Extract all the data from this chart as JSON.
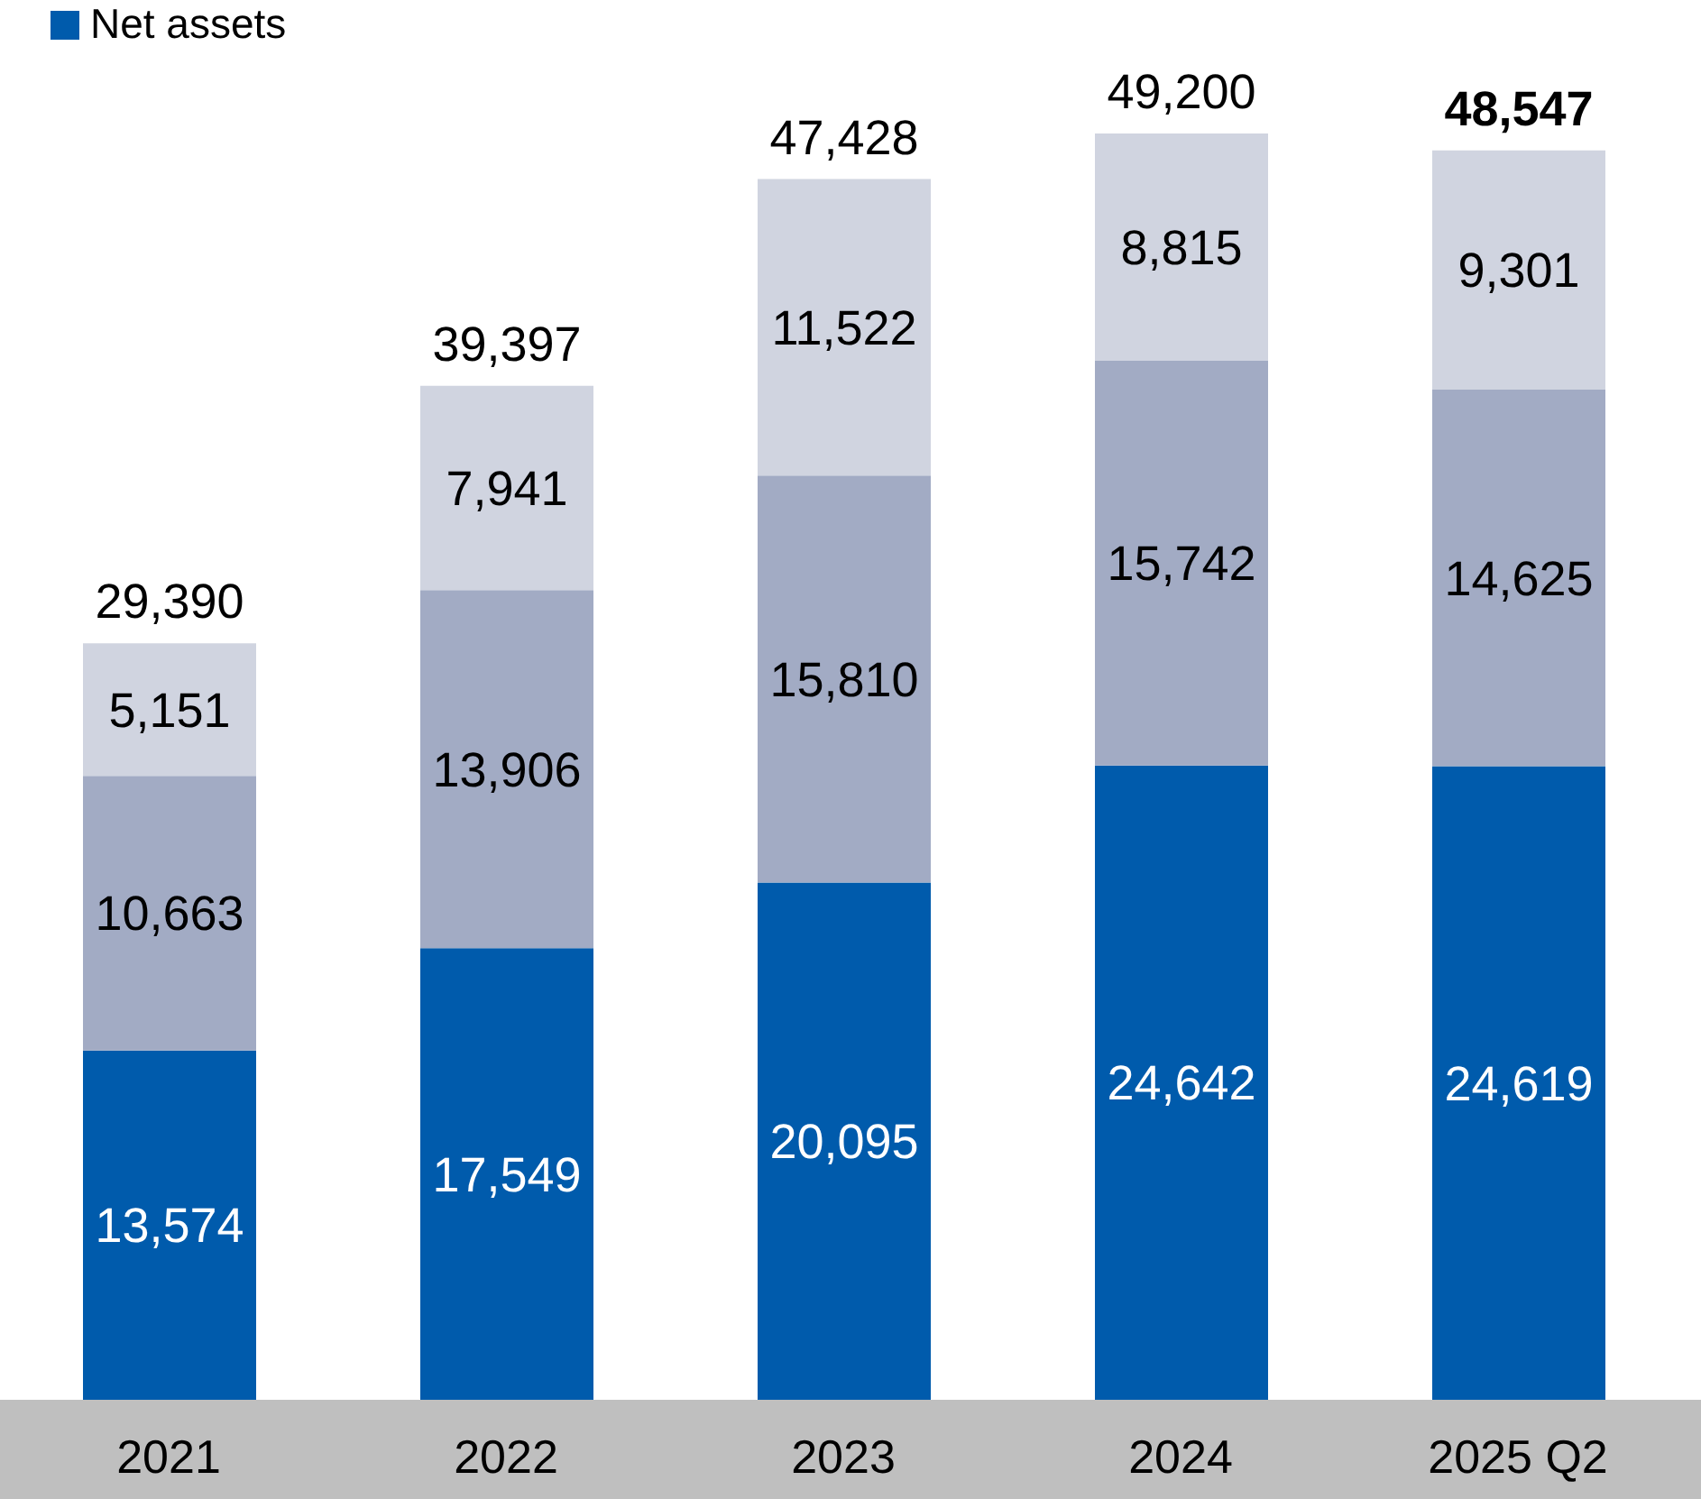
{
  "chart_data": {
    "type": "bar",
    "stacked": true,
    "categories": [
      "2021",
      "2022",
      "2023",
      "2024",
      "2025 Q2"
    ],
    "series": [
      {
        "name": "Net assets",
        "color": "#005bac",
        "values": [
          13574,
          17549,
          20095,
          24642,
          24619
        ],
        "value_labels": [
          "13,574",
          "17,549",
          "20,095",
          "24,642",
          "24,619"
        ]
      },
      {
        "color": "#a2abc4",
        "values": [
          10663,
          13906,
          15810,
          15742,
          14625
        ],
        "value_labels": [
          "10,663",
          "13,906",
          "15,810",
          "15,742",
          "14,625"
        ]
      },
      {
        "color": "#d0d4e0",
        "values": [
          5151,
          7941,
          11522,
          8815,
          9301
        ],
        "value_labels": [
          "5,151",
          "7,941",
          "11,522",
          "8,815",
          "9,301"
        ]
      }
    ],
    "totals": [
      "29,390",
      "39,397",
      "47,428",
      "49,200",
      "48,547"
    ],
    "legend": "top left"
  }
}
